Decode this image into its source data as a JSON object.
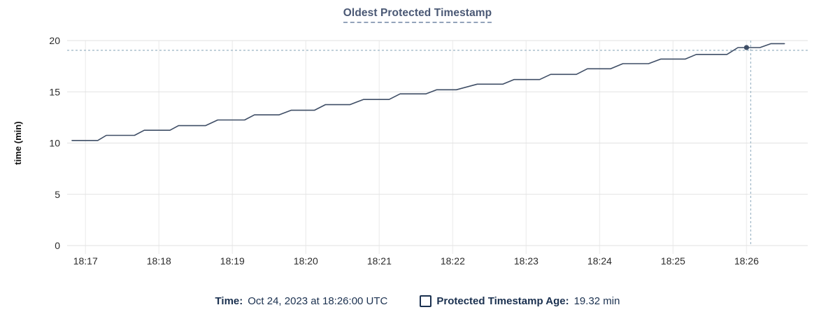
{
  "title": "Oldest Protected Timestamp",
  "footer": {
    "time_label": "Time:",
    "time_value": "Oct 24, 2023 at 18:26:00 UTC",
    "age_label": "Protected Timestamp Age:",
    "age_value": "19.32 min"
  },
  "colors": {
    "title": "#4a5874",
    "line": "#3f4e66",
    "dot": "#3f4e66",
    "crosshair": "#a3bac9",
    "grid_major": "#e2e2e2",
    "grid_minor": "#f0f0f0",
    "tick_text": "#2b2b2b",
    "axis_label": "#111111",
    "footer_text": "#1b3150"
  },
  "chart_data": {
    "type": "line",
    "title": "Oldest Protected Timestamp",
    "xlabel": "",
    "ylabel": "time (min)",
    "ylim": [
      0,
      20
    ],
    "yticks": [
      0,
      5,
      10,
      15,
      20
    ],
    "xticks": [
      "18:17",
      "18:18",
      "18:19",
      "18:20",
      "18:21",
      "18:22",
      "18:23",
      "18:24",
      "18:25",
      "18:26"
    ],
    "x_domain": [
      "18:16:45",
      "18:26:50"
    ],
    "grid": true,
    "legend_position": "bottom",
    "series": [
      {
        "name": "Protected Timestamp Age",
        "unit": "min",
        "points": [
          {
            "t": "18:16:49",
            "v": 10.25
          },
          {
            "t": "18:17:10",
            "v": 10.25
          },
          {
            "t": "18:17:17",
            "v": 10.75
          },
          {
            "t": "18:17:40",
            "v": 10.75
          },
          {
            "t": "18:17:48",
            "v": 11.25
          },
          {
            "t": "18:18:09",
            "v": 11.25
          },
          {
            "t": "18:18:16",
            "v": 11.7
          },
          {
            "t": "18:18:38",
            "v": 11.7
          },
          {
            "t": "18:18:48",
            "v": 12.25
          },
          {
            "t": "18:19:10",
            "v": 12.25
          },
          {
            "t": "18:19:18",
            "v": 12.75
          },
          {
            "t": "18:19:38",
            "v": 12.75
          },
          {
            "t": "18:19:48",
            "v": 13.2
          },
          {
            "t": "18:20:07",
            "v": 13.2
          },
          {
            "t": "18:20:16",
            "v": 13.75
          },
          {
            "t": "18:20:36",
            "v": 13.75
          },
          {
            "t": "18:20:47",
            "v": 14.25
          },
          {
            "t": "18:21:08",
            "v": 14.25
          },
          {
            "t": "18:21:17",
            "v": 14.8
          },
          {
            "t": "18:21:38",
            "v": 14.8
          },
          {
            "t": "18:21:47",
            "v": 15.2
          },
          {
            "t": "18:22:03",
            "v": 15.2
          },
          {
            "t": "18:22:20",
            "v": 15.75
          },
          {
            "t": "18:22:41",
            "v": 15.75
          },
          {
            "t": "18:22:50",
            "v": 16.2
          },
          {
            "t": "18:23:11",
            "v": 16.2
          },
          {
            "t": "18:23:20",
            "v": 16.7
          },
          {
            "t": "18:23:41",
            "v": 16.7
          },
          {
            "t": "18:23:50",
            "v": 17.25
          },
          {
            "t": "18:24:09",
            "v": 17.25
          },
          {
            "t": "18:24:19",
            "v": 17.75
          },
          {
            "t": "18:24:40",
            "v": 17.75
          },
          {
            "t": "18:24:50",
            "v": 18.2
          },
          {
            "t": "18:25:10",
            "v": 18.2
          },
          {
            "t": "18:25:19",
            "v": 18.65
          },
          {
            "t": "18:25:44",
            "v": 18.65
          },
          {
            "t": "18:25:53",
            "v": 19.32
          },
          {
            "t": "18:26:11",
            "v": 19.32
          },
          {
            "t": "18:26:20",
            "v": 19.7
          },
          {
            "t": "18:26:31",
            "v": 19.7
          }
        ]
      }
    ],
    "hover": {
      "time": "18:26:00",
      "value": 19.32,
      "time_display": "Oct 24, 2023 at 18:26:00 UTC",
      "value_display": "19.32 min"
    }
  }
}
